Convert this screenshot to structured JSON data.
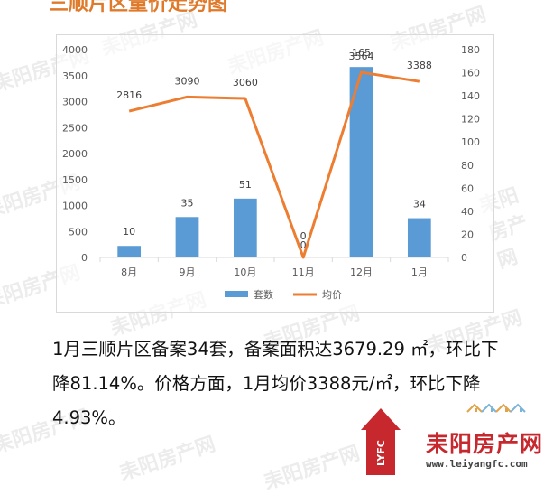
{
  "page": {
    "top_title": "三顺片区量价走势图",
    "watermark_text": "耒阳房产网"
  },
  "chart_data": {
    "type": "bar",
    "categories": [
      "8月",
      "9月",
      "10月",
      "11月",
      "12月",
      "1月"
    ],
    "series": [
      {
        "name": "套数",
        "kind": "bar",
        "axis": "right",
        "color": "#5b9bd5",
        "values": [
          10,
          35,
          51,
          0,
          165,
          34
        ],
        "labels": [
          "10",
          "35",
          "51",
          "0",
          "165",
          "34"
        ]
      },
      {
        "name": "均价",
        "kind": "line",
        "axis": "left",
        "color": "#ed7d31",
        "values": [
          2816,
          3090,
          3060,
          0,
          3564,
          3388
        ],
        "labels": [
          "2816",
          "3090",
          "3060",
          "0",
          "3564",
          "3388"
        ]
      }
    ],
    "y_left": {
      "min": 0,
      "max": 4000,
      "ticks": [
        "0",
        "500",
        "1000",
        "1500",
        "2000",
        "2500",
        "3000",
        "3500",
        "4000"
      ]
    },
    "y_right": {
      "min": 0,
      "max": 180,
      "ticks": [
        "0",
        "20",
        "40",
        "60",
        "80",
        "100",
        "120",
        "140",
        "160",
        "180"
      ]
    },
    "legend_position": "bottom",
    "grid": false,
    "title": "",
    "xlabel": "",
    "ylabel": ""
  },
  "description": {
    "line1": "1月三顺片区备案34套，备案面积达3679.29 ㎡，环比下",
    "line2": "降81.14%。价格方面，1月均价3388元/㎡，环比下降",
    "line3": "4.93%。"
  },
  "logo": {
    "name": "耒阳房产网",
    "url": "www.leiyangfc.com",
    "badge": "LYFC"
  }
}
